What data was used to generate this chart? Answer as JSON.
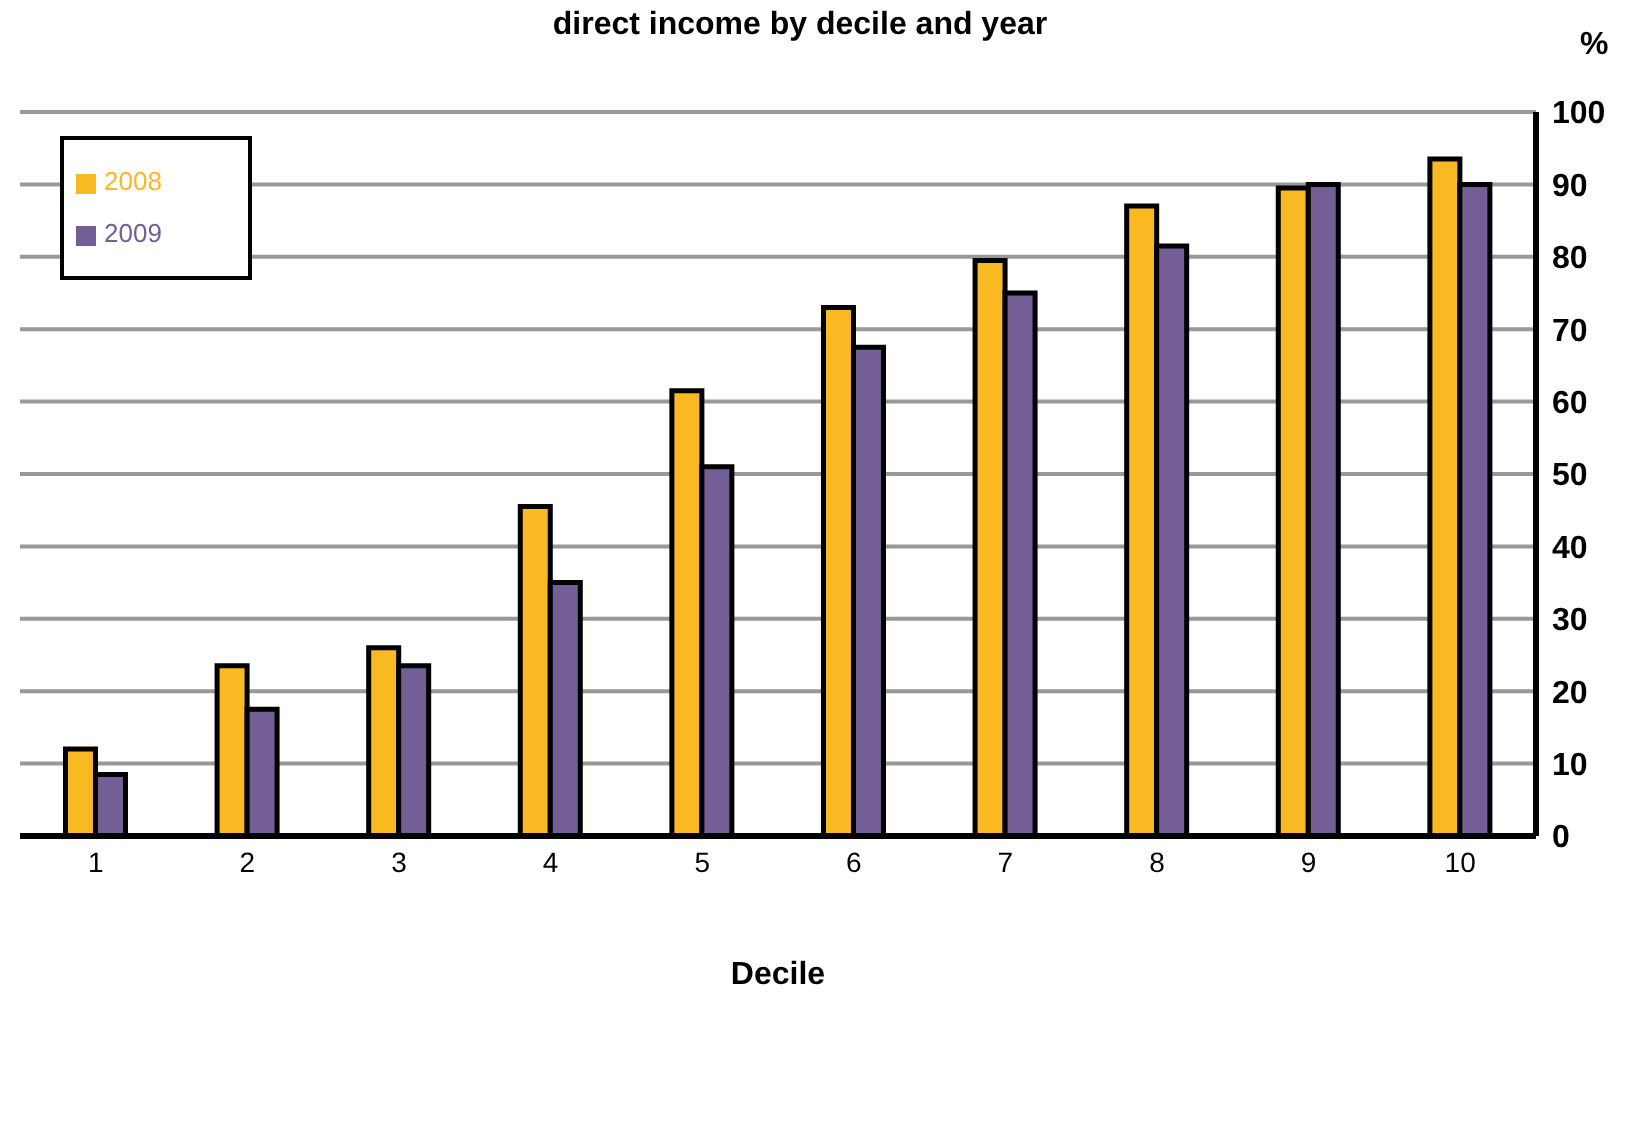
{
  "chart_data": {
    "type": "bar",
    "title": "direct income by decile and year",
    "xlabel": "Decile",
    "ylabel": "%",
    "categories": [
      "1",
      "2",
      "3",
      "4",
      "5",
      "6",
      "7",
      "8",
      "9",
      "10"
    ],
    "series": [
      {
        "name": "2008",
        "color": "#f9b922",
        "values": [
          12,
          23.5,
          26,
          45.5,
          61.5,
          73,
          79.5,
          87,
          89.5,
          93.5
        ]
      },
      {
        "name": "2009",
        "color": "#735e96",
        "values": [
          8.5,
          17.5,
          23.5,
          35,
          51,
          67.5,
          75,
          81.5,
          90,
          90
        ]
      }
    ],
    "ylim": [
      0,
      100
    ],
    "yticks": [
      0,
      10,
      20,
      30,
      40,
      50,
      60,
      70,
      80,
      90,
      100
    ],
    "grid": "y",
    "legend": "top left"
  }
}
